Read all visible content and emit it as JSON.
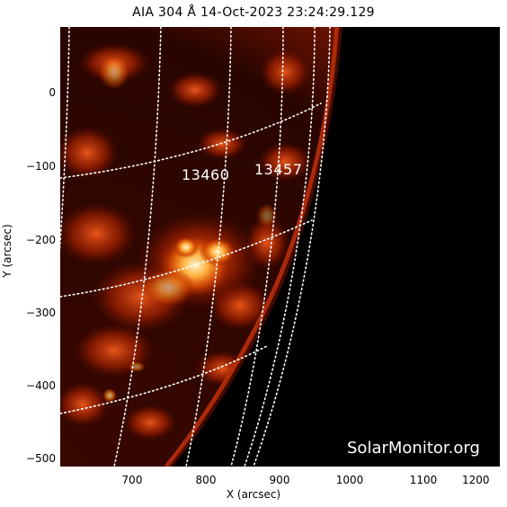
{
  "title": "AIA 304 Å 14-Oct-2023 23:24:29.129",
  "x_axis": {
    "label": "X (arcsec)",
    "ticks": [
      "700",
      "800",
      "900",
      "1000",
      "1100",
      "1200"
    ]
  },
  "y_axis": {
    "label": "Y (arcsec)",
    "ticks": [
      "0",
      "−100",
      "−200",
      "−300",
      "−400",
      "−500"
    ]
  },
  "active_regions": [
    {
      "id": "13460"
    },
    {
      "id": "13457"
    }
  ],
  "watermark": "SolarMonitor.org",
  "colors": {
    "background": "#000000",
    "disk_dark": "#2a0500",
    "disk_mid": "#8a1a00",
    "plage": "#ff7a20",
    "bright": "#fff2c0",
    "grid": "#ffffff"
  }
}
